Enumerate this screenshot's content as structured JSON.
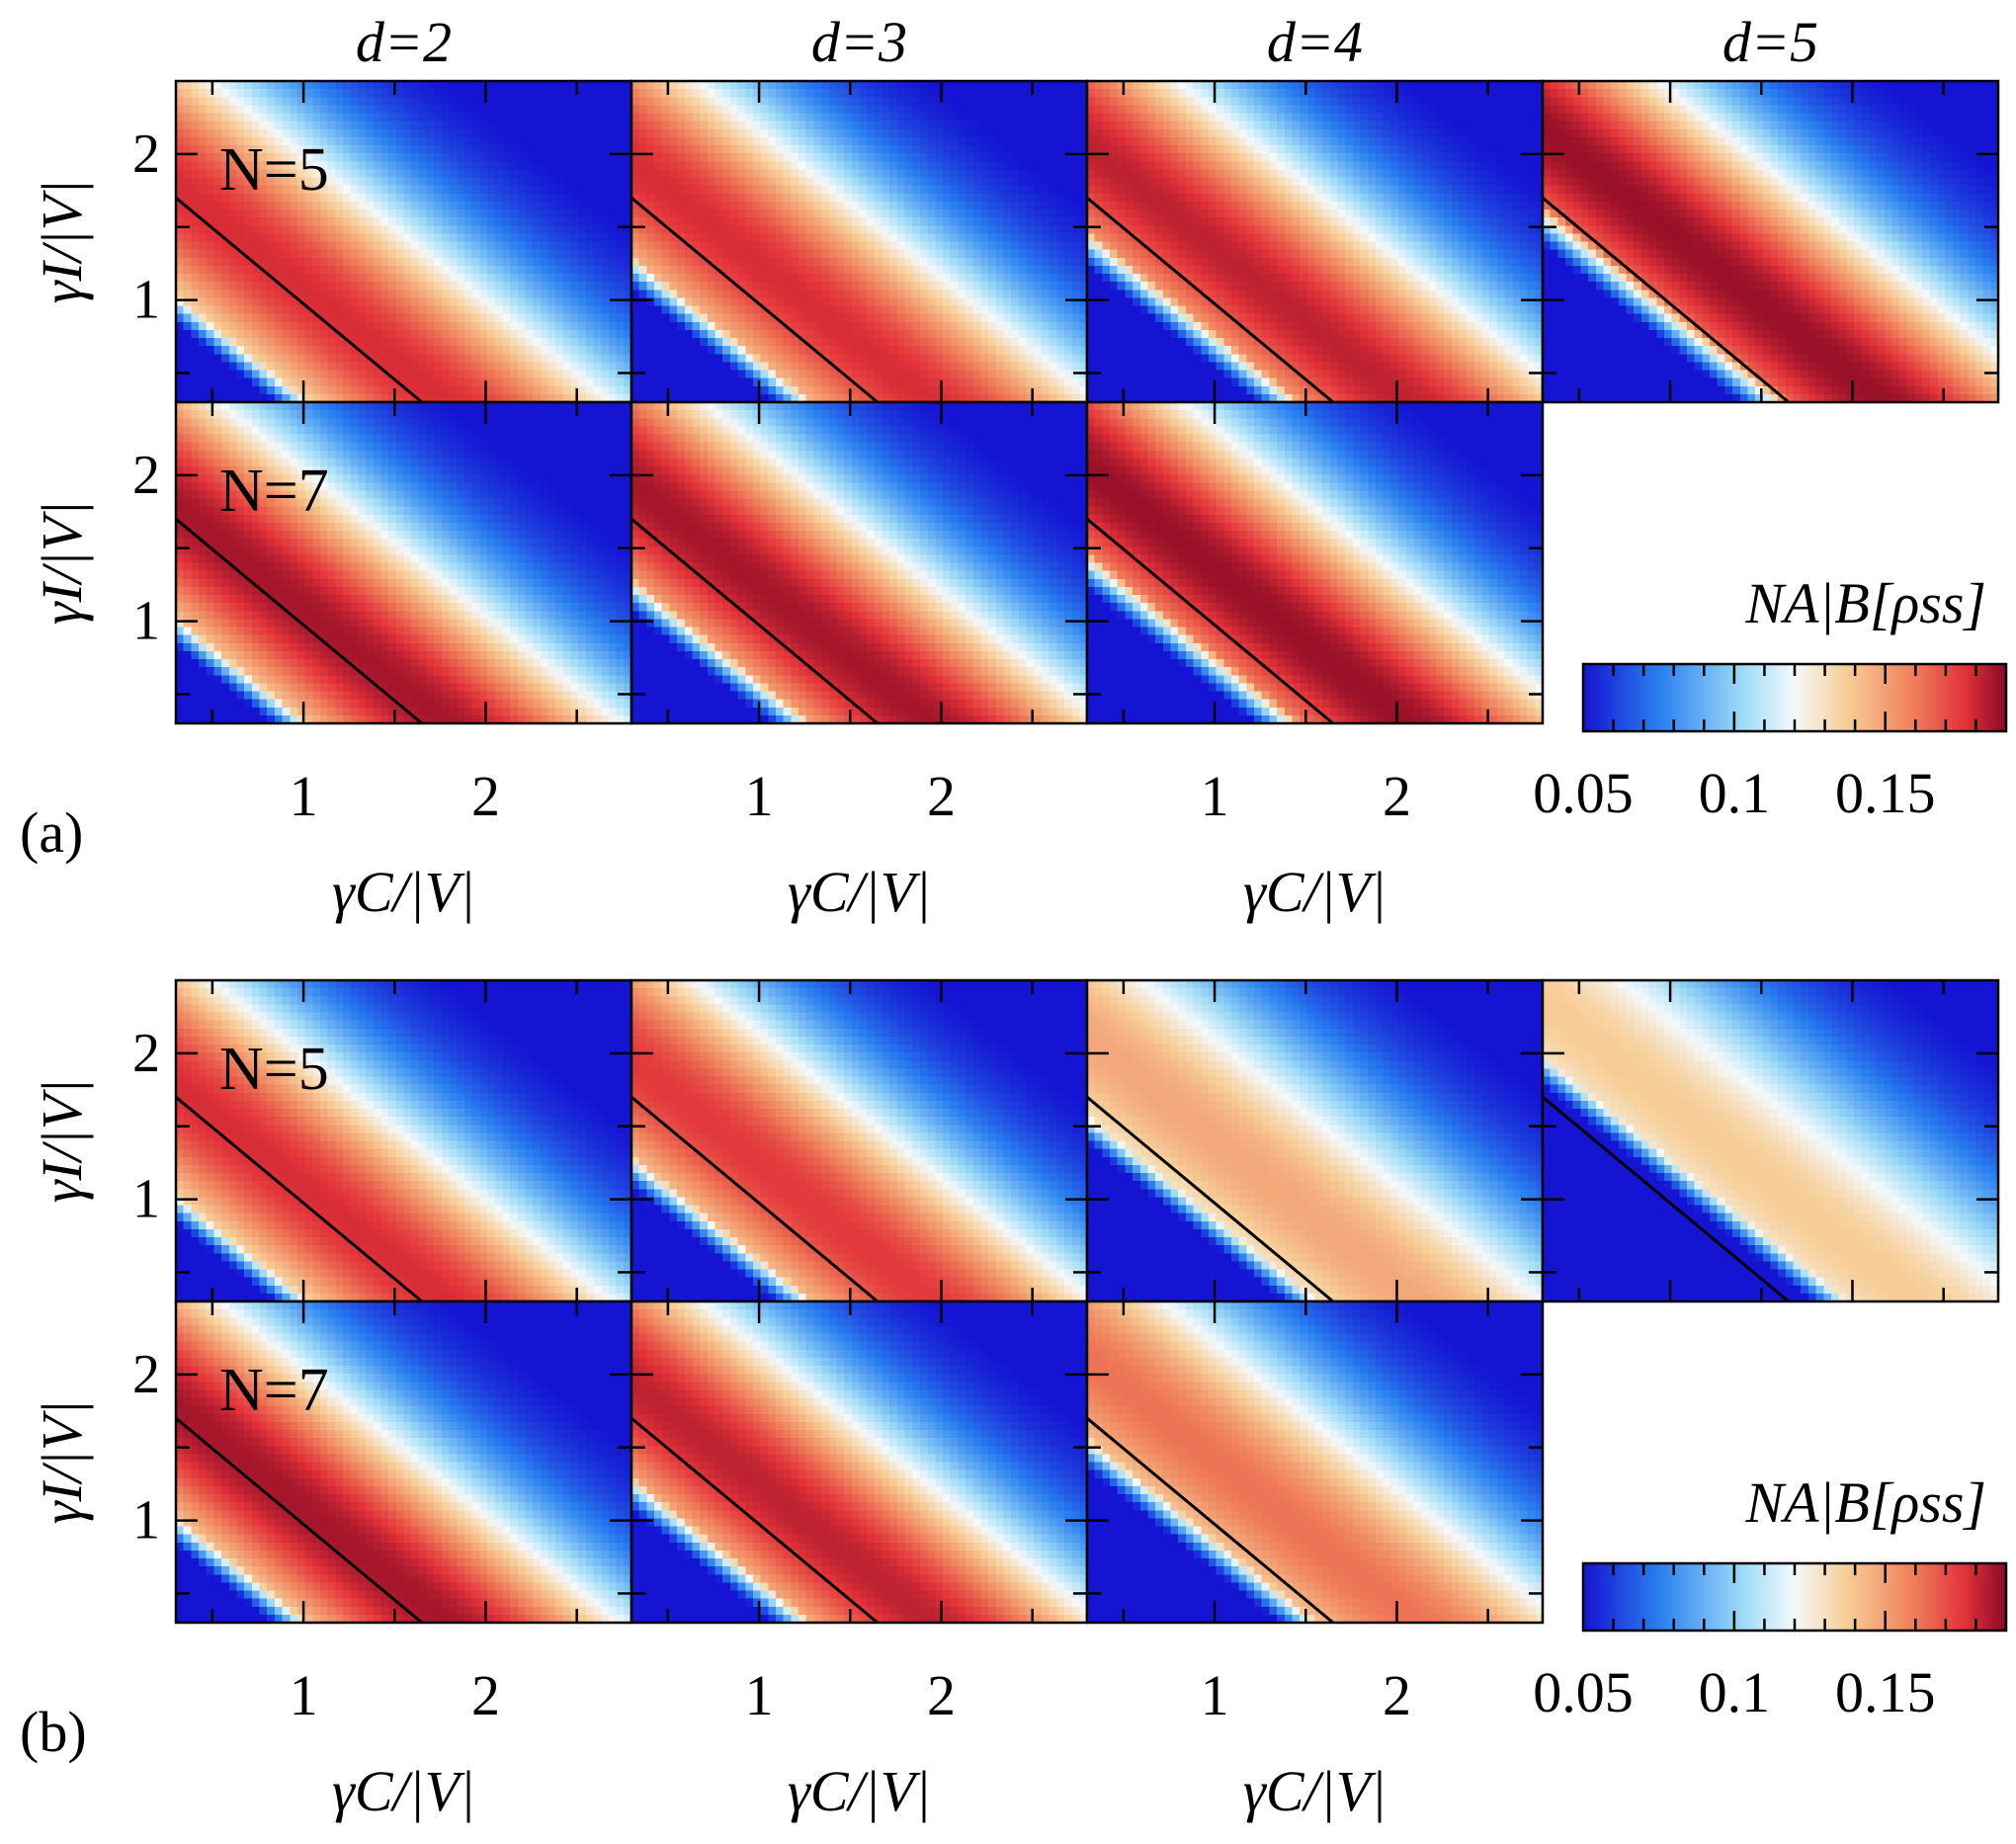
{
  "chart_data": {
    "type": "heatmap",
    "column_headers": [
      "d=2",
      "d=3",
      "d=4",
      "d=5"
    ],
    "panels": [
      {
        "label": "(a)",
        "row_labels": [
          "N=5",
          "N=7"
        ],
        "ylabel": "γI/|V|",
        "xlabel": "γC/|V|",
        "x_ticks": [
          "1",
          "2"
        ],
        "y_ticks": [
          "1",
          "2"
        ],
        "xlim": [
          0.3,
          2.8
        ],
        "ylim": [
          0.3,
          2.5
        ],
        "colorbar": {
          "label": "NA|B[ρss]",
          "ticks": [
            "0.05",
            "0.1",
            "0.15"
          ],
          "range": [
            0.05,
            0.19
          ]
        },
        "maps": [
          {
            "d": 2,
            "N": 5,
            "peak": 0.178,
            "shift": 0.15,
            "low_cut": 0.05
          },
          {
            "d": 3,
            "N": 5,
            "peak": 0.178,
            "shift": 0.45,
            "low_cut": 0.04
          },
          {
            "d": 4,
            "N": 5,
            "peak": 0.182,
            "shift": 0.65,
            "low_cut": 0.03
          },
          {
            "d": 5,
            "N": 5,
            "peak": 0.188,
            "shift": 0.85,
            "low_cut": 0.02
          },
          {
            "d": 2,
            "N": 7,
            "peak": 0.186,
            "shift": 0.15,
            "low_cut": 0.05
          },
          {
            "d": 3,
            "N": 7,
            "peak": 0.186,
            "shift": 0.45,
            "low_cut": 0.04
          },
          {
            "d": 4,
            "N": 7,
            "peak": 0.188,
            "shift": 0.65,
            "low_cut": 0.03
          }
        ]
      },
      {
        "label": "(b)",
        "row_labels": [
          "N=5",
          "N=7"
        ],
        "ylabel": "γI/|V|",
        "xlabel": "γC/|V|",
        "x_ticks": [
          "1",
          "2"
        ],
        "y_ticks": [
          "1",
          "2"
        ],
        "xlim": [
          0.3,
          2.8
        ],
        "ylim": [
          0.3,
          2.5
        ],
        "colorbar": {
          "label": "NA|B[ρss]",
          "ticks": [
            "0.05",
            "0.1",
            "0.15"
          ],
          "range": [
            0.05,
            0.19
          ]
        },
        "maps": [
          {
            "d": 2,
            "N": 5,
            "peak": 0.178,
            "shift": 0.15,
            "low_cut": 0.05
          },
          {
            "d": 3,
            "N": 5,
            "peak": 0.175,
            "shift": 0.45,
            "low_cut": 0.04
          },
          {
            "d": 4,
            "N": 5,
            "peak": 0.148,
            "shift": 0.75,
            "low_cut": 0.03
          },
          {
            "d": 5,
            "N": 5,
            "peak": 0.138,
            "shift": 1.2,
            "low_cut": 0.02
          },
          {
            "d": 2,
            "N": 7,
            "peak": 0.186,
            "shift": 0.15,
            "low_cut": 0.05
          },
          {
            "d": 3,
            "N": 7,
            "peak": 0.182,
            "shift": 0.45,
            "low_cut": 0.04
          },
          {
            "d": 4,
            "N": 7,
            "peak": 0.162,
            "shift": 0.75,
            "low_cut": 0.03
          }
        ]
      }
    ],
    "boundary_line": {
      "from": [
        0.3,
        1.7
      ],
      "to": [
        1.65,
        0.3
      ]
    }
  }
}
